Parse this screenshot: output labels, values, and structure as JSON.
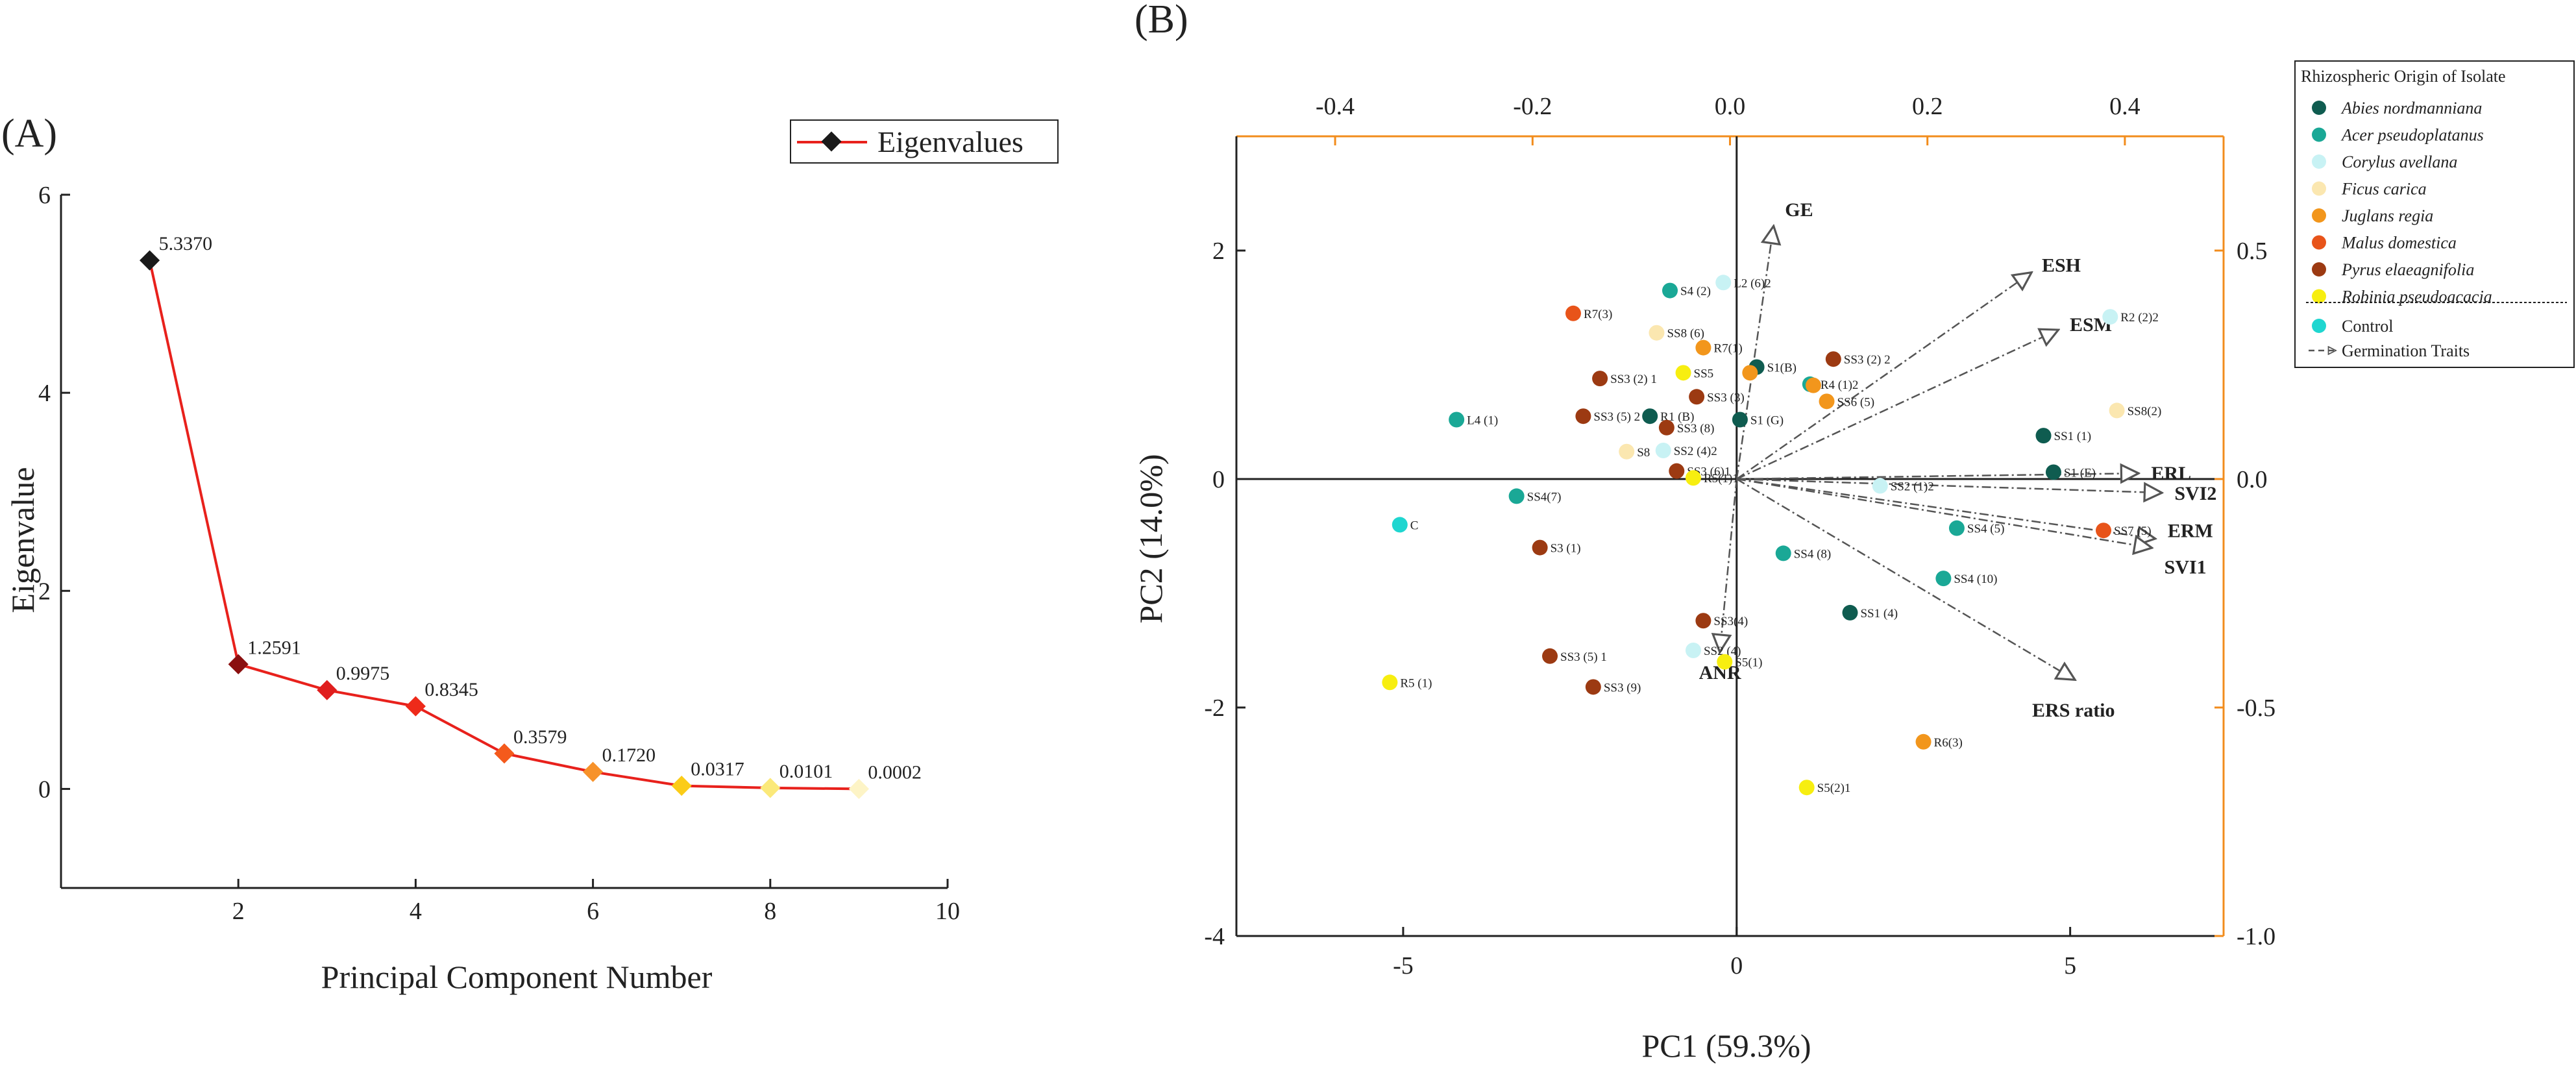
{
  "chart_data": [
    {
      "panel": "(A)",
      "type": "line",
      "title": "",
      "xlabel": "Principal Component Number",
      "ylabel": "Eigenvalue",
      "xlim": [
        0,
        10
      ],
      "ylim": [
        -1,
        6
      ],
      "xticks": [
        2,
        4,
        6,
        8,
        10
      ],
      "yticks": [
        0,
        2,
        4,
        6
      ],
      "legend": {
        "label": "Eigenvalues",
        "placement": "top-right"
      },
      "line_color": "#e8211c",
      "series": [
        {
          "name": "Eigenvalues",
          "x": [
            1,
            2,
            3,
            4,
            5,
            6,
            7,
            8,
            9
          ],
          "values": [
            5.337,
            1.2591,
            0.9975,
            0.8345,
            0.3579,
            0.172,
            0.0317,
            0.0101,
            0.0002
          ],
          "labels": [
            "5.3370",
            "1.2591",
            "0.9975",
            "0.8345",
            "0.3579",
            "0.1720",
            "0.0317",
            "0.0101",
            "0.0002"
          ],
          "marker_colors": [
            "#1a1a1a",
            "#8b1010",
            "#e01e1e",
            "#ee2a1a",
            "#f45a1c",
            "#f7922a",
            "#fbcc18",
            "#fbe97a",
            "#fdf4c6"
          ]
        }
      ]
    },
    {
      "panel": "(B)",
      "type": "scatter",
      "title": "",
      "xlabel": "PC1 (59.3%)",
      "ylabel": "PC2 (14.0%)",
      "xlim": [
        -7.5,
        7.3
      ],
      "ylim": [
        -4,
        3
      ],
      "xticks": [
        -5,
        0,
        5
      ],
      "yticks": [
        -4,
        -2,
        0,
        2
      ],
      "top_axis": {
        "lim": [
          -0.5,
          0.5
        ],
        "ticks": [
          -0.4,
          -0.2,
          0.0,
          0.2,
          0.4
        ],
        "tick_labels": [
          "-0.4",
          "-0.2",
          "0.0",
          "0.2",
          "0.4"
        ],
        "color": "#f28c1c"
      },
      "right_axis": {
        "lim": [
          -1.0,
          0.75
        ],
        "ticks": [
          0.5,
          0.0,
          -0.5,
          -1.0
        ],
        "tick_labels": [
          "0.5",
          "0.0",
          "-0.5",
          "-1.0"
        ],
        "color": "#f28c1c"
      },
      "legend": {
        "title": "Rhizospheric Origin of Isolate",
        "placement": "top-right",
        "items": [
          {
            "label": "Abies nordmanniana",
            "color": "#0f5c50"
          },
          {
            "label": "Acer pseudoplatanus",
            "color": "#1aa896"
          },
          {
            "label": "Corylus avellana",
            "color": "#c8f2f4"
          },
          {
            "label": "Ficus carica",
            "color": "#fbe7b0"
          },
          {
            "label": "Juglans regia",
            "color": "#f2961c"
          },
          {
            "label": "Malus domestica",
            "color": "#e8541a"
          },
          {
            "label": "Pyrus elaeagnifolia",
            "color": "#9c3a12"
          },
          {
            "label": "Robinia pseudoacacia",
            "color": "#f7ee10"
          }
        ],
        "extra_items": [
          {
            "label": "Control",
            "color": "#1fd6d0"
          },
          {
            "label": "Germination Traits"
          }
        ]
      },
      "points": [
        {
          "label": "S4 (2)",
          "x": -1.0,
          "y": 1.65,
          "group": "Acer pseudoplatanus"
        },
        {
          "label": "L2 (6)2",
          "x": -0.2,
          "y": 1.72,
          "group": "Corylus avellana"
        },
        {
          "label": "R7(3)",
          "x": -2.45,
          "y": 1.45,
          "group": "Malus domestica"
        },
        {
          "label": "SS8 (6)",
          "x": -1.2,
          "y": 1.28,
          "group": "Ficus carica"
        },
        {
          "label": "R7(1)",
          "x": -0.5,
          "y": 1.15,
          "group": "Juglans regia"
        },
        {
          "label": "S1(B)",
          "x": 0.3,
          "y": 0.98,
          "group": "Abies nordmanniana"
        },
        {
          "label": "SS3 (2) 2",
          "x": 1.45,
          "y": 1.05,
          "group": "Pyrus elaeagnifolia"
        },
        {
          "label": "R2 (2)2",
          "x": 5.6,
          "y": 1.42,
          "group": "Corylus avellana"
        },
        {
          "label": "SS5",
          "x": -0.8,
          "y": 0.93,
          "group": "Robinia pseudoacacia"
        },
        {
          "label": "",
          "x": 0.2,
          "y": 0.93,
          "group": "Juglans regia"
        },
        {
          "label": "SS3 (2) 1",
          "x": -2.05,
          "y": 0.88,
          "group": "Pyrus elaeagnifolia"
        },
        {
          "label": "R4 (1)2",
          "x": 1.1,
          "y": 0.83,
          "group": "Acer pseudoplatanus"
        },
        {
          "label": "",
          "x": 1.15,
          "y": 0.82,
          "group": "Juglans regia"
        },
        {
          "label": "SS3 (3)",
          "x": -0.6,
          "y": 0.72,
          "group": "Pyrus elaeagnifolia"
        },
        {
          "label": "SS3 (5) 2",
          "x": -2.3,
          "y": 0.55,
          "group": "Pyrus elaeagnifolia"
        },
        {
          "label": "R1 (B)",
          "x": -1.3,
          "y": 0.55,
          "group": "Abies nordmanniana"
        },
        {
          "label": "S1 (G)",
          "x": 0.05,
          "y": 0.52,
          "group": "Abies nordmanniana"
        },
        {
          "label": "SS6 (5)",
          "x": 1.35,
          "y": 0.68,
          "group": "Juglans regia"
        },
        {
          "label": "SS8(2)",
          "x": 5.7,
          "y": 0.6,
          "group": "Ficus carica"
        },
        {
          "label": "L4 (1)",
          "x": -4.2,
          "y": 0.52,
          "group": "Acer pseudoplatanus"
        },
        {
          "label": "SS3 (8)",
          "x": -1.05,
          "y": 0.45,
          "group": "Pyrus elaeagnifolia"
        },
        {
          "label": "SS1 (1)",
          "x": 4.6,
          "y": 0.38,
          "group": "Abies nordmanniana"
        },
        {
          "label": "S8",
          "x": -1.65,
          "y": 0.24,
          "group": "Ficus carica"
        },
        {
          "label": "SS2 (4)2",
          "x": -1.1,
          "y": 0.25,
          "group": "Corylus avellana"
        },
        {
          "label": "SS3 (6)1",
          "x": -0.9,
          "y": 0.07,
          "group": "Pyrus elaeagnifolia"
        },
        {
          "label": "R5(1)1",
          "x": -0.65,
          "y": 0.01,
          "group": "Robinia pseudoacacia"
        },
        {
          "label": "S1 (E)",
          "x": 4.75,
          "y": 0.06,
          "group": "Abies nordmanniana"
        },
        {
          "label": "SS2 (1)2",
          "x": 2.15,
          "y": -0.06,
          "group": "Corylus avellana"
        },
        {
          "label": "SS4(7)",
          "x": -3.3,
          "y": -0.15,
          "group": "Acer pseudoplatanus"
        },
        {
          "label": "SS7 (5)",
          "x": 5.5,
          "y": -0.45,
          "group": "Malus domestica"
        },
        {
          "label": "SS4 (5)",
          "x": 3.3,
          "y": -0.43,
          "group": "Acer pseudoplatanus"
        },
        {
          "label": "C",
          "x": -5.05,
          "y": -0.4,
          "group": "Control"
        },
        {
          "label": "S3 (1)",
          "x": -2.95,
          "y": -0.6,
          "group": "Pyrus elaeagnifolia"
        },
        {
          "label": "SS4 (8)",
          "x": 0.7,
          "y": -0.65,
          "group": "Acer pseudoplatanus"
        },
        {
          "label": "SS4 (10)",
          "x": 3.1,
          "y": -0.87,
          "group": "Acer pseudoplatanus"
        },
        {
          "label": "SS1 (4)",
          "x": 1.7,
          "y": -1.17,
          "group": "Abies nordmanniana"
        },
        {
          "label": "SS3(4)",
          "x": -0.5,
          "y": -1.24,
          "group": "Pyrus elaeagnifolia"
        },
        {
          "label": "SS2 (4)",
          "x": -0.65,
          "y": -1.5,
          "group": "Corylus avellana"
        },
        {
          "label": "SS3 (5) 1",
          "x": -2.8,
          "y": -1.55,
          "group": "Pyrus elaeagnifolia"
        },
        {
          "label": "S5(1)",
          "x": -0.18,
          "y": -1.6,
          "group": "Robinia pseudoacacia"
        },
        {
          "label": "R5 (1)",
          "x": -5.2,
          "y": -1.78,
          "group": "Robinia pseudoacacia"
        },
        {
          "label": "SS3 (9)",
          "x": -2.15,
          "y": -1.82,
          "group": "Pyrus elaeagnifolia"
        },
        {
          "label": "R6(3)",
          "x": 2.8,
          "y": -2.3,
          "group": "Juglans regia"
        },
        {
          "label": "S5(2)1",
          "x": 1.05,
          "y": -2.7,
          "group": "Robinia pseudoacacia"
        }
      ],
      "vectors": [
        {
          "label": "GE",
          "x": 0.55,
          "y": 2.2
        },
        {
          "label": "ESH",
          "x": 4.4,
          "y": 1.8
        },
        {
          "label": "ESM",
          "x": 4.8,
          "y": 1.3
        },
        {
          "label": "ERL",
          "x": 6.0,
          "y": 0.05
        },
        {
          "label": "SVI2",
          "x": 6.35,
          "y": -0.12
        },
        {
          "label": "ERM",
          "x": 6.25,
          "y": -0.52
        },
        {
          "label": "SVI1",
          "x": 6.2,
          "y": -0.6
        },
        {
          "label": "ERS ratio",
          "x": 5.05,
          "y": -1.75
        },
        {
          "label": "ANR",
          "x": -0.25,
          "y": -1.5
        }
      ]
    }
  ]
}
